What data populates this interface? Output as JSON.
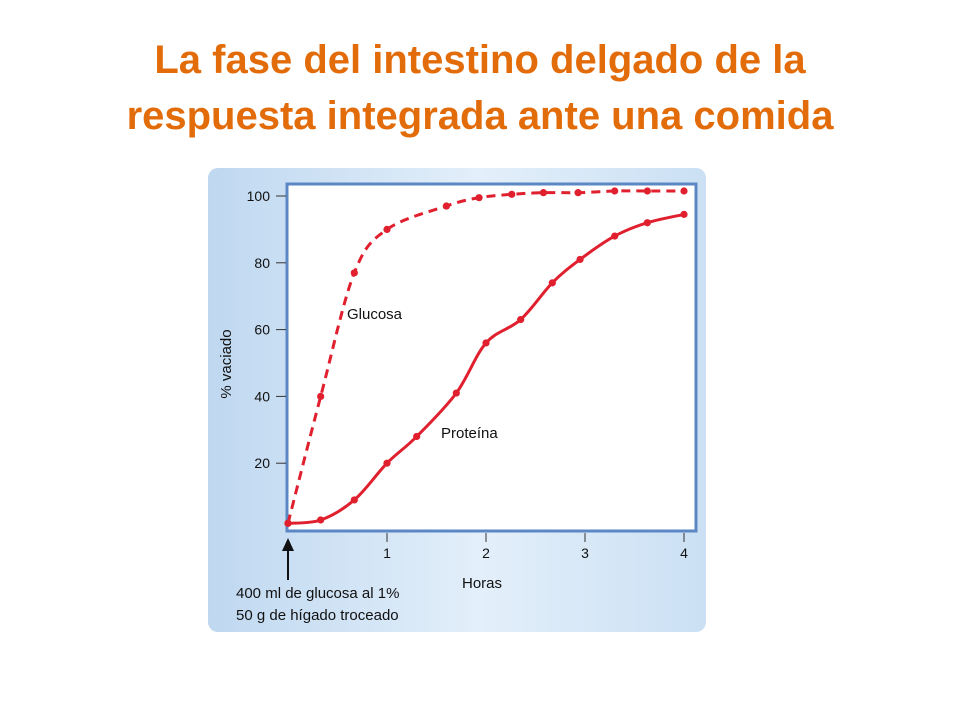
{
  "slide": {
    "title_line1": "La fase del intestino delgado de la",
    "title_line2": "respuesta integrada ante una comida"
  },
  "chart_data": {
    "type": "line",
    "xlabel": "Horas",
    "ylabel": "% vaciado",
    "xlim": [
      0,
      4
    ],
    "ylim": [
      0,
      100
    ],
    "x_ticks": [
      "1",
      "2",
      "3",
      "4"
    ],
    "y_ticks": [
      "20",
      "40",
      "60",
      "80",
      "100"
    ],
    "grid": false,
    "series": [
      {
        "name": "Glucosa",
        "style": "dashed",
        "color": "#E0202E",
        "x": [
          0,
          0.33,
          0.67,
          1.0,
          1.6,
          1.93,
          2.26,
          2.58,
          2.93,
          3.3,
          3.63,
          4.0
        ],
        "y": [
          2,
          40,
          77,
          90,
          97,
          99.5,
          100.5,
          101,
          101,
          101.5,
          101.5,
          101.5
        ]
      },
      {
        "name": "Proteína",
        "style": "solid",
        "color": "#E0202E",
        "x": [
          0,
          0.33,
          0.67,
          1.0,
          1.3,
          1.7,
          2.0,
          2.35,
          2.67,
          2.95,
          3.3,
          3.63,
          4.0
        ],
        "y": [
          2,
          3,
          9,
          20,
          28,
          41,
          56,
          63,
          74,
          81,
          88,
          92,
          94.5
        ]
      }
    ],
    "annotation": {
      "line1": "400 ml de glucosa al 1%",
      "line2": "50 g de hígado troceado"
    },
    "colors": {
      "panel_bg": "#CFE3F5",
      "plot_bg": "#FFFFFF",
      "frame": "#5B87C4",
      "line": "#E0202E",
      "title": "#E36C0A"
    }
  }
}
